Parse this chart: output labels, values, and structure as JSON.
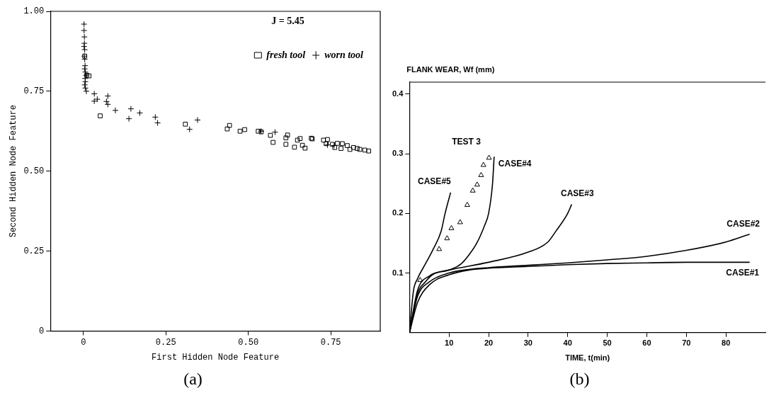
{
  "chart_data": [
    {
      "type": "scatter",
      "title": "(a)",
      "xlabel": "First Hidden Node Feature",
      "ylabel": "Second Hidden Node Feature",
      "annotations": [
        "J = 5.45"
      ],
      "legend": "top right",
      "grid": false,
      "xlim": [
        -0.1,
        0.9
      ],
      "xticks": [
        0,
        0.25,
        {
          "value": 0.5,
          "label": "0.50"
        },
        0.75
      ],
      "ylim": [
        0,
        1
      ],
      "yticks": [
        0,
        0.25,
        {
          "value": 0.5,
          "label": "0.50"
        },
        0.75,
        {
          "value": 1,
          "label": "1.00"
        }
      ],
      "series": [
        {
          "name": "fresh tool",
          "color": "#000000",
          "marker": "square",
          "x": [
            0.01,
            0.017,
            0.004,
            0.051,
            0.309,
            0.436,
            0.443,
            0.475,
            0.489,
            0.53,
            0.539,
            0.567,
            0.575,
            0.614,
            0.619,
            0.614,
            0.64,
            0.649,
            0.657,
            0.664,
            0.672,
            0.691,
            0.694,
            0.728,
            0.74,
            0.736,
            0.755,
            0.77,
            0.785,
            0.762,
            0.781,
            0.8,
            0.808,
            0.819,
            0.83,
            0.838,
            0.853,
            0.865
          ],
          "values": [
            0.8,
            0.798,
            0.86,
            0.673,
            0.647,
            0.632,
            0.643,
            0.625,
            0.63,
            0.625,
            0.623,
            0.612,
            0.59,
            0.604,
            0.613,
            0.584,
            0.575,
            0.597,
            0.602,
            0.581,
            0.572,
            0.603,
            0.601,
            0.597,
            0.599,
            0.586,
            0.584,
            0.587,
            0.586,
            0.574,
            0.571,
            0.58,
            0.568,
            0.574,
            0.571,
            0.568,
            0.566,
            0.563
          ]
        },
        {
          "name": "worn tool",
          "color": "#000000",
          "marker": "cross",
          "x": [
            0.002,
            0.002,
            0.003,
            0.003,
            0.002,
            0.004,
            0.003,
            0.004,
            0.005,
            0.004,
            0.006,
            0.008,
            0.005,
            0.006,
            0.004,
            0.006,
            0.009,
            0.033,
            0.033,
            0.042,
            0.074,
            0.07,
            0.074,
            0.097,
            0.144,
            0.138,
            0.171,
            0.218,
            0.225,
            0.322,
            0.346,
            0.539,
            0.581,
            0.74,
            0.76
          ],
          "values": [
            0.96,
            0.94,
            0.92,
            0.9,
            0.89,
            0.88,
            0.86,
            0.85,
            0.83,
            0.82,
            0.81,
            0.8,
            0.79,
            0.78,
            0.77,
            0.76,
            0.75,
            0.742,
            0.719,
            0.725,
            0.735,
            0.718,
            0.709,
            0.69,
            0.695,
            0.664,
            0.682,
            0.669,
            0.651,
            0.631,
            0.66,
            0.625,
            0.622,
            0.582,
            0.58
          ]
        }
      ]
    },
    {
      "type": "line",
      "title": "(b)",
      "xlabel": "TIME, t(min)",
      "ylabel": "FLANK WEAR, Wf (mm)",
      "grid": false,
      "marker": "none",
      "xlim": [
        0,
        90
      ],
      "xticks": [
        10,
        20,
        30,
        40,
        50,
        60,
        70,
        80
      ],
      "ylim": [
        0,
        0.42
      ],
      "yticks": [
        0.1,
        0.2,
        0.3,
        0.4
      ],
      "series": [
        {
          "name": "CASE#1",
          "color": "#000000",
          "x": [
            0,
            2,
            5,
            10,
            15,
            20,
            30,
            40,
            50,
            60,
            70,
            86
          ],
          "values": [
            0,
            0.05,
            0.08,
            0.097,
            0.105,
            0.108,
            0.111,
            0.114,
            0.116,
            0.117,
            0.118,
            0.118
          ]
        },
        {
          "name": "CASE#2",
          "color": "#000000",
          "x": [
            0,
            2,
            5,
            10,
            15,
            20,
            30,
            40,
            50,
            60,
            70,
            80,
            86
          ],
          "values": [
            0,
            0.06,
            0.085,
            0.1,
            0.106,
            0.109,
            0.113,
            0.117,
            0.122,
            0.128,
            0.138,
            0.152,
            0.165
          ]
        },
        {
          "name": "CASE#3",
          "color": "#000000",
          "x": [
            0,
            2,
            4,
            6,
            10,
            20,
            30,
            35,
            37,
            40,
            41
          ],
          "values": [
            0,
            0.065,
            0.085,
            0.098,
            0.105,
            0.118,
            0.135,
            0.152,
            0.17,
            0.2,
            0.215
          ]
        },
        {
          "name": "CASE#4",
          "color": "#000000",
          "x": [
            0,
            2,
            5,
            10,
            13,
            15,
            17,
            19,
            20,
            21,
            21.4
          ],
          "values": [
            0,
            0.07,
            0.095,
            0.105,
            0.115,
            0.13,
            0.15,
            0.18,
            0.2,
            0.25,
            0.295
          ]
        },
        {
          "name": "CASE#5",
          "color": "#000000",
          "x": [
            0,
            1,
            2,
            4,
            6,
            8,
            9,
            10.4
          ],
          "values": [
            0,
            0.07,
            0.09,
            0.115,
            0.14,
            0.17,
            0.2,
            0.235
          ]
        },
        {
          "name": "TEST 3",
          "type": "scatter",
          "marker": "triangle",
          "color": "#000000",
          "x": [
            2.7,
            7.5,
            9.5,
            10.6,
            12.8,
            14.6,
            16.0,
            17.1,
            18.1,
            18.7,
            20.1
          ],
          "values": [
            0.088,
            0.14,
            0.158,
            0.175,
            0.185,
            0.214,
            0.238,
            0.248,
            0.264,
            0.281,
            0.293
          ]
        }
      ]
    }
  ]
}
